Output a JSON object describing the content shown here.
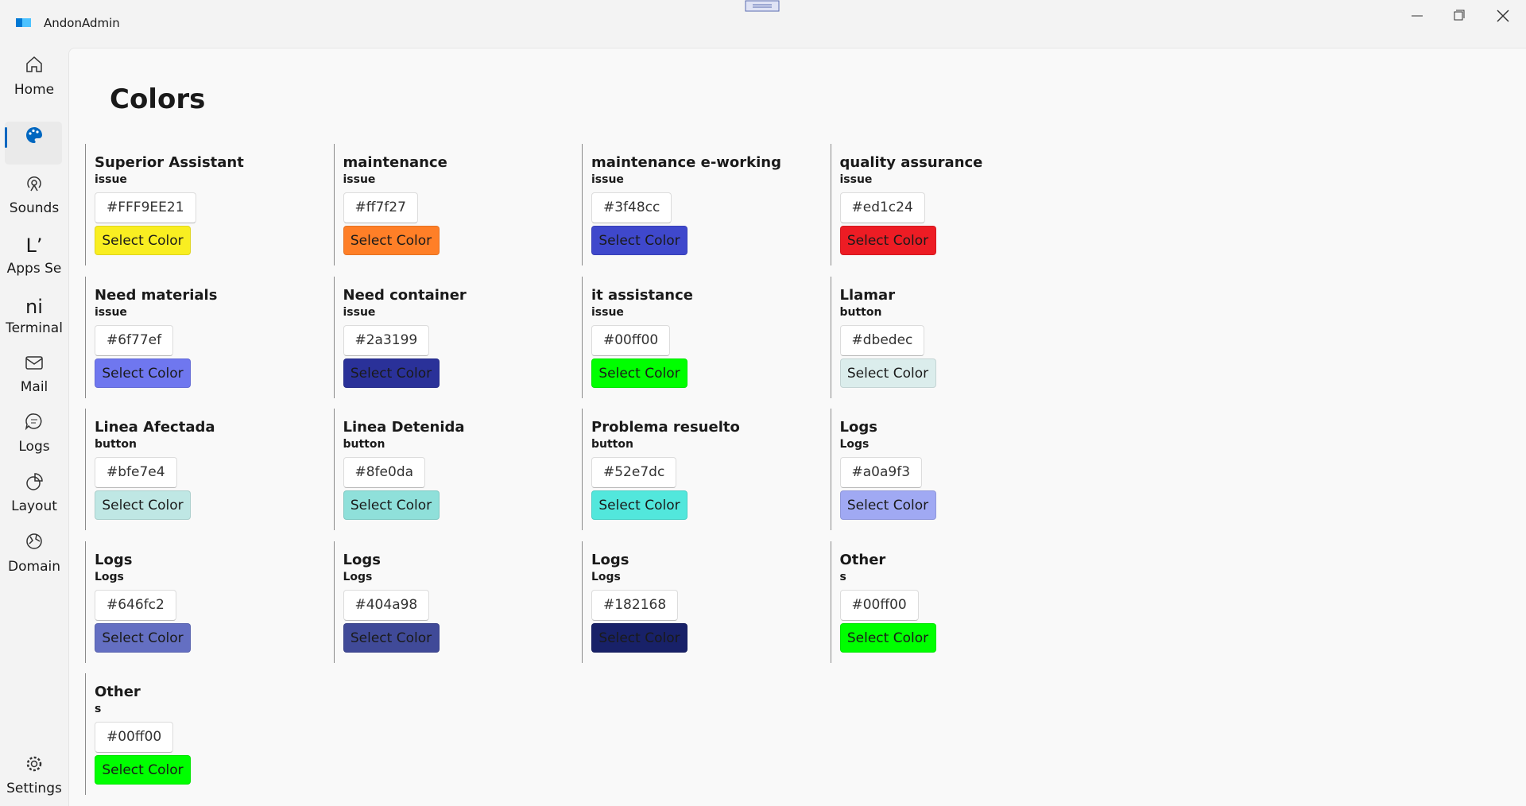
{
  "window": {
    "title": "AndonAdmin"
  },
  "nav": [
    {
      "label": "Home"
    },
    {
      "label": "Sounds"
    },
    {
      "label": "Apps Se",
      "icon_text": "Lʼ"
    },
    {
      "label": "Terminal",
      "icon_text": "ni"
    },
    {
      "label": "Mail"
    },
    {
      "label": "Logs"
    },
    {
      "label": "Layout"
    },
    {
      "label": "Domain"
    },
    {
      "label": "Settings"
    }
  ],
  "page": {
    "heading": "Colors",
    "button_label": "Select Color"
  },
  "cards": [
    {
      "name": "Superior Assistant",
      "type": "issue",
      "hex": "#FFF9EE21",
      "color": "#f9ee21"
    },
    {
      "name": "maintenance",
      "type": "issue",
      "hex": "#ff7f27",
      "color": "#ff7f27"
    },
    {
      "name": "maintenance e-working",
      "type": "issue",
      "hex": "#3f48cc",
      "color": "#3f48cc"
    },
    {
      "name": "quality assurance",
      "type": "issue",
      "hex": "#ed1c24",
      "color": "#ed1c24"
    },
    {
      "name": "Need materials",
      "type": "issue",
      "hex": "#6f77ef",
      "color": "#6f77ef"
    },
    {
      "name": "Need container",
      "type": "issue",
      "hex": "#2a3199",
      "color": "#2a3199"
    },
    {
      "name": "it assistance",
      "type": "issue",
      "hex": "#00ff00",
      "color": "#00ff00"
    },
    {
      "name": "Llamar",
      "type": "button",
      "hex": "#dbedec",
      "color": "#dbedec"
    },
    {
      "name": "Linea Afectada",
      "type": "button",
      "hex": "#bfe7e4",
      "color": "#bfe7e4"
    },
    {
      "name": "Linea Detenida",
      "type": "button",
      "hex": "#8fe0da",
      "color": "#8fe0da"
    },
    {
      "name": "Problema resuelto",
      "type": "button",
      "hex": "#52e7dc",
      "color": "#52e7dc"
    },
    {
      "name": "Logs",
      "type": "Logs",
      "hex": "#a0a9f3",
      "color": "#a0a9f3"
    },
    {
      "name": "Logs",
      "type": "Logs",
      "hex": "#646fc2",
      "color": "#646fc2"
    },
    {
      "name": "Logs",
      "type": "Logs",
      "hex": "#404a98",
      "color": "#404a98"
    },
    {
      "name": "Logs",
      "type": "Logs",
      "hex": "#182168",
      "color": "#182168"
    },
    {
      "name": "Other",
      "type": "s",
      "hex": "#00ff00",
      "color": "#00ff00"
    },
    {
      "name": "Other",
      "type": "s",
      "hex": "#00ff00",
      "color": "#00ff00"
    }
  ]
}
